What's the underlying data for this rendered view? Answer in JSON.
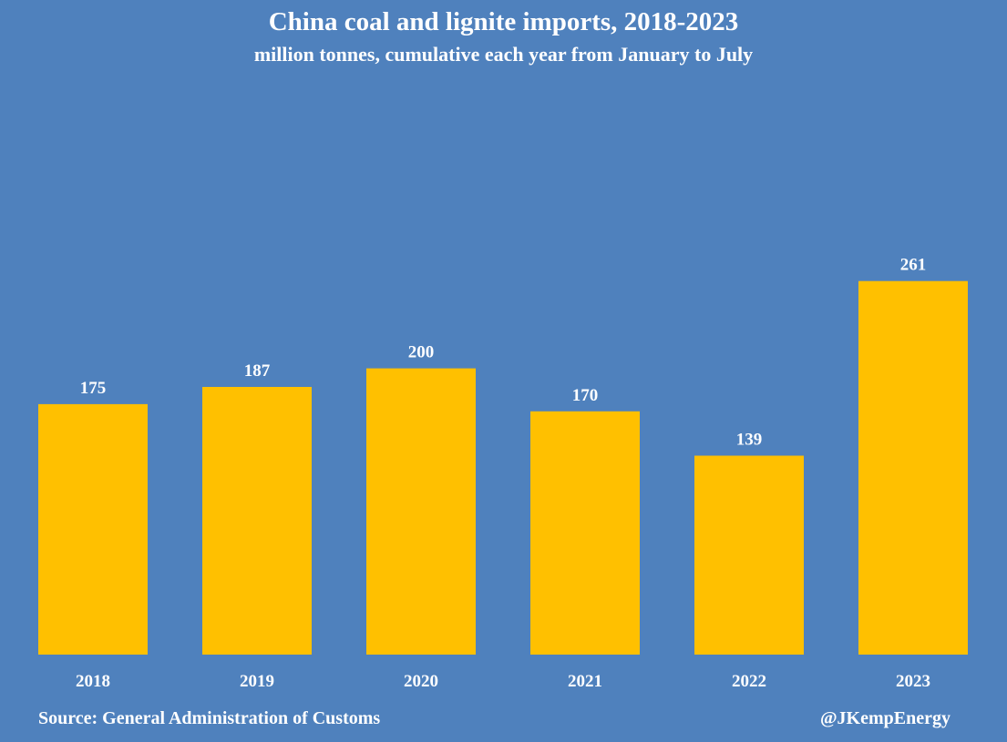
{
  "chart_data": {
    "type": "bar",
    "title": "China coal and lignite imports, 2018-2023",
    "subtitle": "million tonnes, cumulative each year from January to July",
    "categories": [
      "2018",
      "2019",
      "2020",
      "2021",
      "2022",
      "2023"
    ],
    "values": [
      175,
      187,
      200,
      170,
      139,
      261
    ],
    "data_labels": [
      "175",
      "187",
      "200",
      "170",
      "139",
      "261"
    ],
    "ylim": [
      0,
      300
    ],
    "grid": false,
    "legend": "none",
    "colors": {
      "background": "#4f81bd",
      "bar": "#ffc000",
      "text": "#ffffff"
    }
  },
  "footer": {
    "source": "Source: General Administration of Customs",
    "handle": "@JKempEnergy"
  }
}
